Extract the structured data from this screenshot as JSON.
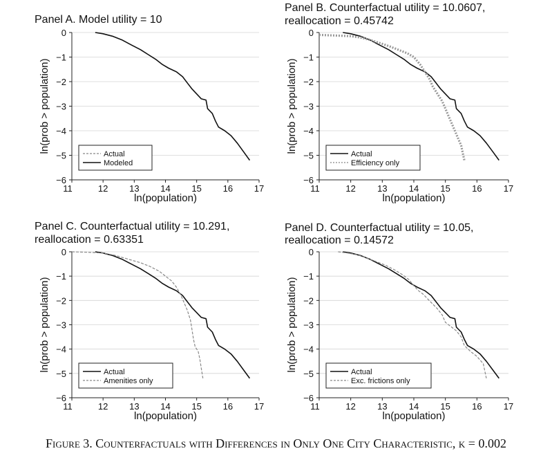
{
  "figure": {
    "caption_prefix": "Figure 3.",
    "caption_text": "Counterfactuals with Differences in Only One City Characteristic, κ = 0.002"
  },
  "chart_data": [
    {
      "type": "line",
      "title": "Panel A. Model utility = 10",
      "xlabel": "ln(population)",
      "ylabel": "ln(prob > population)",
      "xlim": [
        11,
        17
      ],
      "ylim": [
        -6,
        0
      ],
      "xticks": [
        11,
        12,
        13,
        14,
        15,
        16,
        17
      ],
      "yticks": [
        0,
        -1,
        -2,
        -3,
        -4,
        -5,
        -6
      ],
      "legend_position": "bottom-left",
      "series": [
        {
          "name": "Actual",
          "style": "dashed",
          "color": "#888888",
          "x": [
            11.75,
            12.0,
            12.3,
            12.6,
            12.9,
            13.2,
            13.45,
            13.7,
            13.9,
            14.1,
            14.35,
            14.55,
            14.7,
            14.85,
            15.0,
            15.15,
            15.3,
            15.35,
            15.5,
            15.6,
            15.7,
            15.9,
            16.1,
            16.3,
            16.5,
            16.7
          ],
          "y": [
            0,
            -0.05,
            -0.15,
            -0.3,
            -0.5,
            -0.7,
            -0.9,
            -1.1,
            -1.3,
            -1.45,
            -1.6,
            -1.8,
            -2.05,
            -2.3,
            -2.5,
            -2.7,
            -2.75,
            -3.1,
            -3.3,
            -3.6,
            -3.85,
            -4.0,
            -4.2,
            -4.5,
            -4.85,
            -5.2
          ]
        },
        {
          "name": "Modeled",
          "style": "solid",
          "color": "#111111",
          "x": [
            11.75,
            12.0,
            12.3,
            12.6,
            12.9,
            13.2,
            13.45,
            13.7,
            13.9,
            14.1,
            14.35,
            14.55,
            14.7,
            14.85,
            15.0,
            15.15,
            15.3,
            15.35,
            15.5,
            15.6,
            15.7,
            15.9,
            16.1,
            16.3,
            16.5,
            16.7
          ],
          "y": [
            0,
            -0.05,
            -0.15,
            -0.3,
            -0.5,
            -0.7,
            -0.9,
            -1.1,
            -1.3,
            -1.45,
            -1.6,
            -1.8,
            -2.05,
            -2.3,
            -2.5,
            -2.7,
            -2.75,
            -3.1,
            -3.3,
            -3.6,
            -3.85,
            -4.0,
            -4.2,
            -4.5,
            -4.85,
            -5.2
          ]
        }
      ]
    },
    {
      "type": "line",
      "title": "Panel B. Counterfactual utility = 10.0607,",
      "subtitle": "reallocation = 0.45742",
      "xlabel": "ln(population)",
      "ylabel": "ln(prob > population)",
      "xlim": [
        11,
        17
      ],
      "ylim": [
        -6,
        0
      ],
      "xticks": [
        11,
        12,
        13,
        14,
        15,
        16,
        17
      ],
      "yticks": [
        0,
        -1,
        -2,
        -3,
        -4,
        -5,
        -6
      ],
      "legend_position": "bottom-left",
      "series": [
        {
          "name": "Actual",
          "style": "solid",
          "color": "#111111",
          "x": [
            11.75,
            12.0,
            12.3,
            12.6,
            12.9,
            13.2,
            13.45,
            13.7,
            13.9,
            14.1,
            14.35,
            14.55,
            14.7,
            14.85,
            15.0,
            15.15,
            15.3,
            15.35,
            15.5,
            15.6,
            15.7,
            15.9,
            16.1,
            16.3,
            16.5,
            16.7
          ],
          "y": [
            0,
            -0.05,
            -0.15,
            -0.3,
            -0.5,
            -0.7,
            -0.9,
            -1.1,
            -1.3,
            -1.45,
            -1.6,
            -1.8,
            -2.05,
            -2.3,
            -2.5,
            -2.7,
            -2.75,
            -3.1,
            -3.3,
            -3.6,
            -3.85,
            -4.0,
            -4.2,
            -4.5,
            -4.85,
            -5.2
          ]
        },
        {
          "name": "Efficiency only",
          "style": "dotted",
          "color": "#999999",
          "x": [
            11.0,
            11.5,
            12.0,
            12.3,
            12.6,
            12.9,
            13.2,
            13.5,
            13.8,
            14.0,
            14.2,
            14.35,
            14.5,
            14.6,
            14.75,
            14.9,
            15.0,
            15.1,
            15.2,
            15.3,
            15.4,
            15.5,
            15.55,
            15.6
          ],
          "y": [
            -0.1,
            -0.12,
            -0.15,
            -0.2,
            -0.3,
            -0.42,
            -0.55,
            -0.7,
            -0.85,
            -1.0,
            -1.3,
            -1.6,
            -1.9,
            -2.2,
            -2.5,
            -2.8,
            -3.1,
            -3.4,
            -3.7,
            -4.0,
            -4.3,
            -4.6,
            -4.9,
            -5.2
          ]
        }
      ]
    },
    {
      "type": "line",
      "title": "Panel C. Counterfactual utility = 10.291,",
      "subtitle": "reallocation = 0.63351",
      "xlabel": "ln(population)",
      "ylabel": "ln(prob > population)",
      "xlim": [
        11,
        17
      ],
      "ylim": [
        -6,
        0
      ],
      "xticks": [
        11,
        12,
        13,
        14,
        15,
        16,
        17
      ],
      "yticks": [
        0,
        -1,
        -2,
        -3,
        -4,
        -5,
        -6
      ],
      "legend_position": "bottom-left",
      "series": [
        {
          "name": "Actual",
          "style": "solid",
          "color": "#111111",
          "x": [
            11.75,
            12.0,
            12.3,
            12.6,
            12.9,
            13.2,
            13.45,
            13.7,
            13.9,
            14.1,
            14.35,
            14.55,
            14.7,
            14.85,
            15.0,
            15.15,
            15.3,
            15.35,
            15.5,
            15.6,
            15.7,
            15.9,
            16.1,
            16.3,
            16.5,
            16.7
          ],
          "y": [
            0,
            -0.05,
            -0.15,
            -0.3,
            -0.5,
            -0.7,
            -0.9,
            -1.1,
            -1.3,
            -1.45,
            -1.6,
            -1.8,
            -2.05,
            -2.3,
            -2.5,
            -2.7,
            -2.75,
            -3.1,
            -3.3,
            -3.6,
            -3.85,
            -4.0,
            -4.2,
            -4.5,
            -4.85,
            -5.2
          ]
        },
        {
          "name": "Amenities only",
          "style": "dashed",
          "color": "#888888",
          "x": [
            11.0,
            11.5,
            12.0,
            12.4,
            12.8,
            13.2,
            13.5,
            13.8,
            14.0,
            14.2,
            14.35,
            14.5,
            14.6,
            14.7,
            14.8,
            14.85,
            14.9,
            14.95,
            15.0,
            15.05,
            15.1,
            15.15,
            15.2
          ],
          "y": [
            0,
            -0.02,
            -0.05,
            -0.15,
            -0.3,
            -0.45,
            -0.6,
            -0.8,
            -1.0,
            -1.2,
            -1.45,
            -1.8,
            -2.1,
            -2.4,
            -2.8,
            -3.2,
            -3.6,
            -3.9,
            -4.0,
            -4.1,
            -4.4,
            -4.8,
            -5.2
          ]
        }
      ]
    },
    {
      "type": "line",
      "title": "Panel D. Counterfactual utility = 10.05,",
      "subtitle": "reallocation = 0.14572",
      "xlabel": "ln(population)",
      "ylabel": "ln(prob > population)",
      "xlim": [
        11,
        17
      ],
      "ylim": [
        -6,
        0
      ],
      "xticks": [
        11,
        12,
        13,
        14,
        15,
        16,
        17
      ],
      "yticks": [
        0,
        -1,
        -2,
        -3,
        -4,
        -5,
        -6
      ],
      "legend_position": "bottom-left",
      "series": [
        {
          "name": "Actual",
          "style": "solid",
          "color": "#111111",
          "x": [
            11.75,
            12.0,
            12.3,
            12.6,
            12.9,
            13.2,
            13.45,
            13.7,
            13.9,
            14.1,
            14.35,
            14.55,
            14.7,
            14.85,
            15.0,
            15.15,
            15.3,
            15.35,
            15.5,
            15.6,
            15.7,
            15.9,
            16.1,
            16.3,
            16.5,
            16.7
          ],
          "y": [
            0,
            -0.05,
            -0.15,
            -0.3,
            -0.5,
            -0.7,
            -0.9,
            -1.1,
            -1.3,
            -1.45,
            -1.6,
            -1.8,
            -2.05,
            -2.3,
            -2.5,
            -2.7,
            -2.75,
            -3.1,
            -3.3,
            -3.6,
            -3.85,
            -4.0,
            -4.2,
            -4.5,
            -4.85,
            -5.2
          ]
        },
        {
          "name": "Exc. frictions only",
          "style": "dashed",
          "color": "#888888",
          "x": [
            11.6,
            11.9,
            12.2,
            12.5,
            12.8,
            13.1,
            13.4,
            13.65,
            13.85,
            14.0,
            14.15,
            14.3,
            14.45,
            14.6,
            14.75,
            14.9,
            15.0,
            15.2,
            15.35,
            15.5,
            15.6,
            15.8,
            16.0,
            16.2,
            16.3
          ],
          "y": [
            0,
            -0.05,
            -0.12,
            -0.25,
            -0.4,
            -0.55,
            -0.75,
            -0.95,
            -1.15,
            -1.4,
            -1.6,
            -1.75,
            -1.95,
            -2.15,
            -2.35,
            -2.6,
            -2.9,
            -3.1,
            -3.25,
            -3.5,
            -3.85,
            -4.1,
            -4.3,
            -4.6,
            -5.2
          ]
        }
      ]
    }
  ]
}
